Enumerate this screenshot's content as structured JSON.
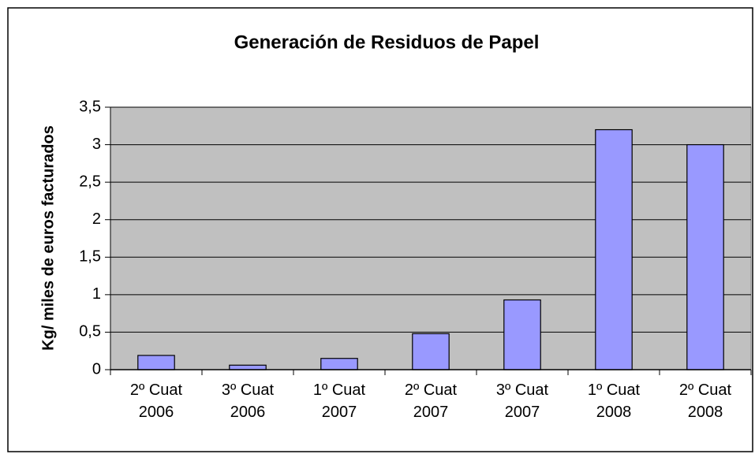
{
  "chart_data": {
    "type": "bar",
    "title": "Generación de Residuos de Papel",
    "y_label": "Kg/ miles de euros facturados",
    "categories": [
      "2º Cuat\n2006",
      "3º Cuat\n2006",
      "1º Cuat\n2007",
      "2º Cuat\n2007",
      "3º Cuat\n2007",
      "1º Cuat\n2008",
      "2º Cuat\n2008"
    ],
    "values": [
      0.19,
      0.06,
      0.15,
      0.48,
      0.93,
      3.2,
      3.0
    ],
    "color": "#9999ff",
    "ylim": [
      0,
      3.5
    ],
    "yticks": [
      0,
      {
        "value": 0.5,
        "label": "0,5"
      },
      1,
      {
        "value": 1.5,
        "label": "1,5"
      },
      2,
      {
        "value": 2.5,
        "label": "2,5"
      },
      3,
      {
        "value": 3.5,
        "label": "3,5"
      }
    ],
    "grid": true
  }
}
